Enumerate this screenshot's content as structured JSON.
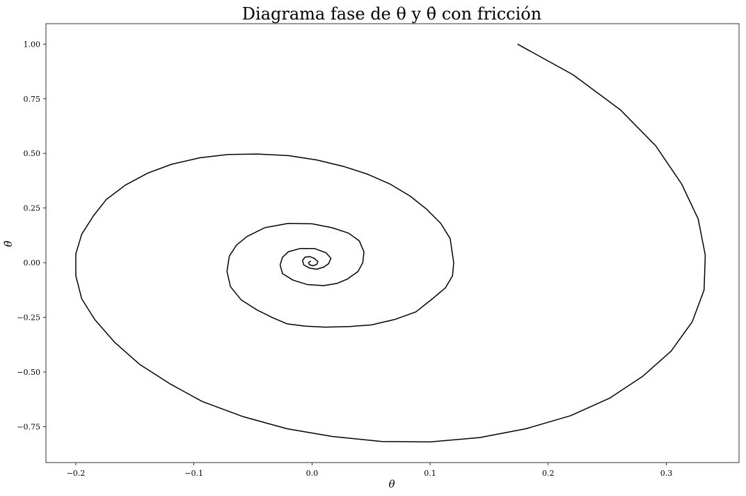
{
  "chart_data": {
    "type": "line",
    "title": "Diagrama fase de θ y θ̇ con fricción",
    "xlabel": "θ",
    "ylabel": "θ̇",
    "xlim": [
      -0.2253,
      0.3616
    ],
    "ylim": [
      -0.9145,
      1.0935
    ],
    "xticks": [
      -0.2,
      -0.1,
      0.0,
      0.1,
      0.2,
      0.3
    ],
    "xtick_labels": [
      "−0.2",
      "−0.1",
      "0.0",
      "0.1",
      "0.2",
      "0.3"
    ],
    "yticks": [
      -0.75,
      -0.5,
      -0.25,
      0.0,
      0.25,
      0.5,
      0.75,
      1.0
    ],
    "ytick_labels": [
      "−0.75",
      "−0.50",
      "−0.25",
      "0.00",
      "0.25",
      "0.50",
      "0.75",
      "1.00"
    ],
    "grid": false,
    "series": [
      {
        "color": "#000000",
        "x": [
          0.174,
          0.221,
          0.261,
          0.291,
          0.313,
          0.327,
          0.333,
          0.332,
          0.322,
          0.304,
          0.28,
          0.252,
          0.219,
          0.181,
          0.142,
          0.1,
          0.059,
          0.017,
          -0.021,
          -0.058,
          -0.093,
          -0.12,
          -0.146,
          -0.167,
          -0.184,
          -0.195,
          -0.2,
          -0.2,
          -0.195,
          -0.185,
          -0.174,
          -0.158,
          -0.139,
          -0.119,
          -0.095,
          -0.071,
          -0.046,
          -0.02,
          0.004,
          0.027,
          0.047,
          0.066,
          0.083,
          0.097,
          0.109,
          0.117,
          0.12,
          0.119,
          0.113,
          0.102,
          0.088,
          0.07,
          0.05,
          0.032,
          0.011,
          -0.006,
          -0.021,
          -0.034,
          -0.047,
          -0.06,
          -0.069,
          -0.072,
          -0.07,
          -0.064,
          -0.055,
          -0.04,
          -0.02,
          0.0,
          0.017,
          0.031,
          0.04,
          0.044,
          0.043,
          0.039,
          0.03,
          0.021,
          0.01,
          -0.004,
          -0.016,
          -0.025,
          -0.027,
          -0.025,
          -0.02,
          -0.01,
          0.002,
          0.012,
          0.016,
          0.014,
          0.01,
          0.004,
          -0.002,
          -0.007,
          -0.008,
          -0.006,
          -0.002,
          0.002,
          0.005,
          0.004,
          0.001,
          -0.002,
          -0.003,
          -0.001
        ],
        "y": [
          1.0,
          0.86,
          0.7,
          0.535,
          0.36,
          0.2,
          0.035,
          -0.125,
          -0.27,
          -0.405,
          -0.52,
          -0.62,
          -0.7,
          -0.76,
          -0.8,
          -0.82,
          -0.818,
          -0.795,
          -0.76,
          -0.705,
          -0.635,
          -0.555,
          -0.465,
          -0.365,
          -0.26,
          -0.165,
          -0.06,
          0.04,
          0.13,
          0.215,
          0.29,
          0.355,
          0.41,
          0.45,
          0.48,
          0.495,
          0.497,
          0.49,
          0.47,
          0.44,
          0.405,
          0.36,
          0.305,
          0.245,
          0.18,
          0.11,
          0.0,
          -0.06,
          -0.115,
          -0.165,
          -0.225,
          -0.26,
          -0.285,
          -0.292,
          -0.295,
          -0.29,
          -0.28,
          -0.25,
          -0.215,
          -0.17,
          -0.11,
          -0.04,
          0.03,
          0.08,
          0.12,
          0.16,
          0.18,
          0.178,
          0.16,
          0.135,
          0.1,
          0.05,
          0.0,
          -0.04,
          -0.075,
          -0.095,
          -0.105,
          -0.1,
          -0.08,
          -0.05,
          -0.01,
          0.025,
          0.05,
          0.065,
          0.065,
          0.045,
          0.02,
          -0.005,
          -0.02,
          -0.03,
          -0.025,
          -0.01,
          0.01,
          0.025,
          0.028,
          0.02,
          0.005,
          -0.008,
          -0.014,
          -0.01,
          0.0,
          0.008
        ]
      }
    ]
  }
}
